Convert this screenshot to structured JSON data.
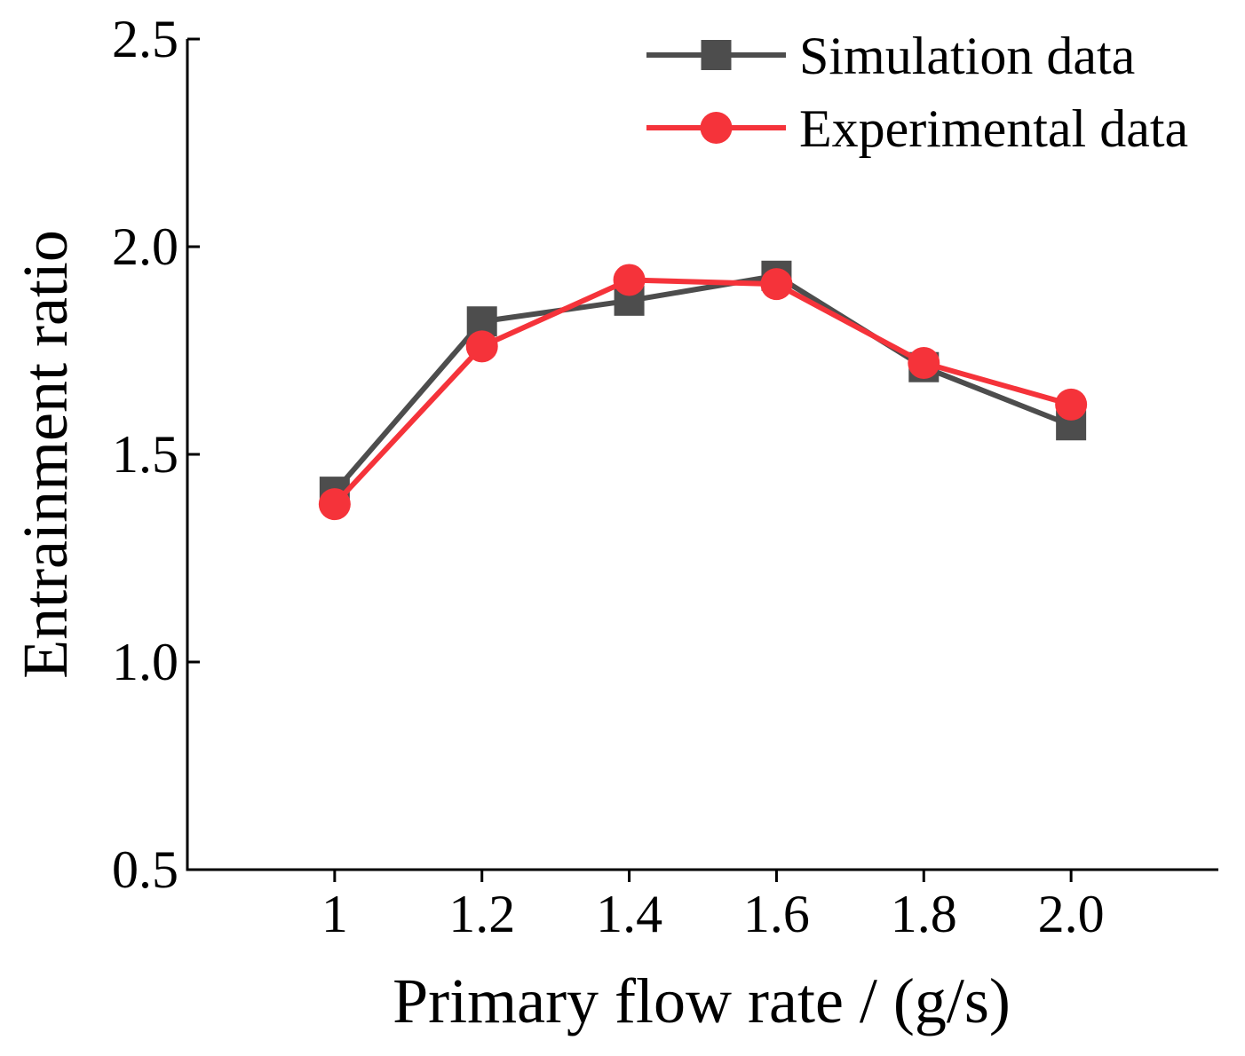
{
  "chart_data": {
    "type": "line",
    "x": [
      1.0,
      1.2,
      1.4,
      1.6,
      1.8,
      2.0
    ],
    "x_tick_labels": [
      "1",
      "1.2",
      "1.4",
      "1.6",
      "1.8",
      "2.0"
    ],
    "y_ticks": [
      0.5,
      1.0,
      1.5,
      2.0,
      2.5
    ],
    "y_tick_labels": [
      "0.5",
      "1.0",
      "1.5",
      "2.0",
      "2.5"
    ],
    "xlim": [
      0.8,
      2.2
    ],
    "ylim": [
      0.5,
      2.5
    ],
    "xlabel": "Primary flow rate / (g/s)",
    "ylabel": "Entrainment ratio",
    "grid": false,
    "legend_position": "top-right",
    "series": [
      {
        "name": "Simulation data",
        "marker": "square",
        "color": "#4d4d4d",
        "values": [
          1.41,
          1.82,
          1.87,
          1.93,
          1.71,
          1.57
        ]
      },
      {
        "name": "Experimental data",
        "marker": "circle",
        "color": "#f5333a",
        "values": [
          1.38,
          1.76,
          1.92,
          1.91,
          1.72,
          1.62
        ]
      }
    ]
  }
}
